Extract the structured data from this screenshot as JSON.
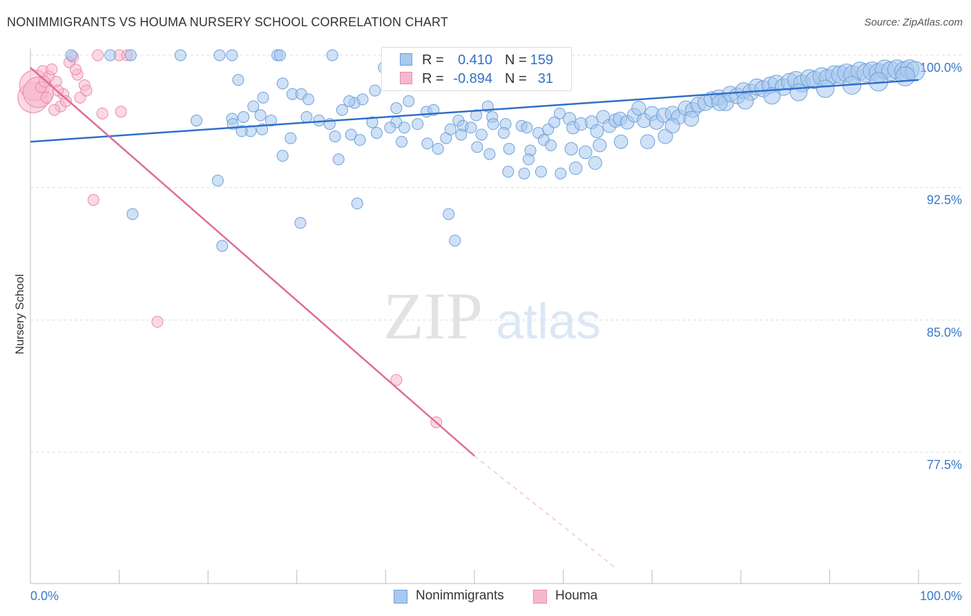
{
  "title": "NONIMMIGRANTS VS HOUMA NURSERY SCHOOL CORRELATION CHART",
  "source": "Source: ZipAtlas.com",
  "watermark": {
    "part1": "ZIP",
    "part2": "atlas"
  },
  "colors": {
    "blue_fill": "#a8c8ee",
    "blue_stroke": "#6f9fd8",
    "blue_line": "#2e6fc9",
    "pink_fill": "#f7b8cc",
    "pink_stroke": "#e88aa9",
    "pink_line": "#e06a98",
    "axis_label": "#3a78c8",
    "grid": "#dddddd"
  },
  "legend": {
    "r_label": "R =",
    "n_label": "N =",
    "entries": [
      {
        "r": "0.410",
        "n": "159"
      },
      {
        "r": "-0.894",
        "n": "31"
      }
    ]
  },
  "bottom_legend": [
    "Nonimmigrants",
    "Houma"
  ],
  "chart_data": {
    "type": "scatter",
    "ylabel": "Nursery School",
    "xlim": [
      0,
      100
    ],
    "ylim": [
      71,
      101.5
    ],
    "x_tick_labels": {
      "left": "0.0%",
      "right": "100.0%"
    },
    "y_ticks": [
      {
        "value": 100.0,
        "label": "100.0%"
      },
      {
        "value": 92.5,
        "label": "92.5%"
      },
      {
        "value": 85.0,
        "label": "85.0%"
      },
      {
        "value": 77.5,
        "label": "77.5%"
      }
    ],
    "series": [
      {
        "name": "Nonimmigrants",
        "r": 0.41,
        "n": 159,
        "trend": {
          "x0": 0,
          "y0": 95.1,
          "x1": 100,
          "y1": 98.6
        },
        "points": [
          [
            4.6,
            100
          ],
          [
            9.0,
            100
          ],
          [
            11.3,
            100
          ],
          [
            16.9,
            100
          ],
          [
            21.3,
            100
          ],
          [
            22.7,
            100
          ],
          [
            27.8,
            100
          ],
          [
            28.1,
            100
          ],
          [
            34.0,
            100
          ],
          [
            39.8,
            99.3
          ],
          [
            23.4,
            98.6
          ],
          [
            28.4,
            98.4
          ],
          [
            29.5,
            97.8
          ],
          [
            30.5,
            97.8
          ],
          [
            31.3,
            97.5
          ],
          [
            26.2,
            97.6
          ],
          [
            25.1,
            97.1
          ],
          [
            22.7,
            96.4
          ],
          [
            24.0,
            96.5
          ],
          [
            25.9,
            96.6
          ],
          [
            26.1,
            95.8
          ],
          [
            24.8,
            95.7
          ],
          [
            32.5,
            96.3
          ],
          [
            33.7,
            96.1
          ],
          [
            35.1,
            96.9
          ],
          [
            36.5,
            97.3
          ],
          [
            35.9,
            97.4
          ],
          [
            37.4,
            97.5
          ],
          [
            38.8,
            98.0
          ],
          [
            42.6,
            97.4
          ],
          [
            41.2,
            97.0
          ],
          [
            41.2,
            96.2
          ],
          [
            40.5,
            95.9
          ],
          [
            42.1,
            95.9
          ],
          [
            41.8,
            95.1
          ],
          [
            44.6,
            96.8
          ],
          [
            45.4,
            96.9
          ],
          [
            43.6,
            96.1
          ],
          [
            46.8,
            95.3
          ],
          [
            48.2,
            96.3
          ],
          [
            48.7,
            96.0
          ],
          [
            50.8,
            95.5
          ],
          [
            50.2,
            96.6
          ],
          [
            52.0,
            96.5
          ],
          [
            52.1,
            96.1
          ],
          [
            51.5,
            97.1
          ],
          [
            53.5,
            96.1
          ],
          [
            53.3,
            95.6
          ],
          [
            55.3,
            96.0
          ],
          [
            55.9,
            95.9
          ],
          [
            56.3,
            94.6
          ],
          [
            57.2,
            95.6
          ],
          [
            57.8,
            95.2
          ],
          [
            58.3,
            95.8
          ],
          [
            59.0,
            96.2
          ],
          [
            59.6,
            96.7
          ],
          [
            60.7,
            96.4
          ],
          [
            61.1,
            95.9
          ],
          [
            62.0,
            96.1
          ],
          [
            63.2,
            96.2
          ],
          [
            63.8,
            95.7
          ],
          [
            64.5,
            96.5
          ],
          [
            65.2,
            96.0
          ],
          [
            65.9,
            96.3
          ],
          [
            66.4,
            96.4
          ],
          [
            67.2,
            96.2
          ],
          [
            68.0,
            96.6
          ],
          [
            68.5,
            97.0
          ],
          [
            69.1,
            96.3
          ],
          [
            70.0,
            96.7
          ],
          [
            70.5,
            96.2
          ],
          [
            71.3,
            96.6
          ],
          [
            72.3,
            96.7
          ],
          [
            73.0,
            96.5
          ],
          [
            73.8,
            97.0
          ],
          [
            74.6,
            96.9
          ],
          [
            75.2,
            97.2
          ],
          [
            76.0,
            97.3
          ],
          [
            76.7,
            97.5
          ],
          [
            77.5,
            97.6
          ],
          [
            78.3,
            97.3
          ],
          [
            78.8,
            97.8
          ],
          [
            79.6,
            97.7
          ],
          [
            80.3,
            98.0
          ],
          [
            81.1,
            97.9
          ],
          [
            81.8,
            98.2
          ],
          [
            82.5,
            98.1
          ],
          [
            83.3,
            98.3
          ],
          [
            84.0,
            98.4
          ],
          [
            84.8,
            98.2
          ],
          [
            85.5,
            98.5
          ],
          [
            86.2,
            98.6
          ],
          [
            86.9,
            98.4
          ],
          [
            87.7,
            98.7
          ],
          [
            88.3,
            98.6
          ],
          [
            89.1,
            98.8
          ],
          [
            89.8,
            98.7
          ],
          [
            90.5,
            98.9
          ],
          [
            91.2,
            98.9
          ],
          [
            91.9,
            99.0
          ],
          [
            92.6,
            98.9
          ],
          [
            93.4,
            99.1
          ],
          [
            94.1,
            99.0
          ],
          [
            94.8,
            99.1
          ],
          [
            95.5,
            99.0
          ],
          [
            96.2,
            99.2
          ],
          [
            96.9,
            99.1
          ],
          [
            97.6,
            99.2
          ],
          [
            98.4,
            99.1
          ],
          [
            99.0,
            99.2
          ],
          [
            99.6,
            99.1
          ],
          [
            23.8,
            95.7
          ],
          [
            29.3,
            95.3
          ],
          [
            34.3,
            95.4
          ],
          [
            36.1,
            95.5
          ],
          [
            39.0,
            95.6
          ],
          [
            31.1,
            96.5
          ],
          [
            38.5,
            96.2
          ],
          [
            27.1,
            96.3
          ],
          [
            21.1,
            92.9
          ],
          [
            18.7,
            96.3
          ],
          [
            11.5,
            91.0
          ],
          [
            36.8,
            91.6
          ],
          [
            47.1,
            91.0
          ],
          [
            30.4,
            90.5
          ],
          [
            34.7,
            94.1
          ],
          [
            47.8,
            89.5
          ],
          [
            21.6,
            89.2
          ],
          [
            22.8,
            96.1
          ],
          [
            28.4,
            94.3
          ],
          [
            37.1,
            95.2
          ],
          [
            48.5,
            95.5
          ],
          [
            50.3,
            94.8
          ],
          [
            53.8,
            93.4
          ],
          [
            55.6,
            93.3
          ],
          [
            57.5,
            93.4
          ],
          [
            59.7,
            93.3
          ],
          [
            61.4,
            93.6
          ],
          [
            63.6,
            93.9
          ],
          [
            66.5,
            95.1
          ],
          [
            69.5,
            95.1
          ],
          [
            71.5,
            95.4
          ],
          [
            72.3,
            96.0
          ],
          [
            74.4,
            96.4
          ],
          [
            77.6,
            97.3
          ],
          [
            80.5,
            97.4
          ],
          [
            83.5,
            97.7
          ],
          [
            86.5,
            97.9
          ],
          [
            89.5,
            98.1
          ],
          [
            92.5,
            98.3
          ],
          [
            95.5,
            98.5
          ],
          [
            98.5,
            98.8
          ],
          [
            44.7,
            95.0
          ],
          [
            45.9,
            94.7
          ],
          [
            47.3,
            95.8
          ],
          [
            49.6,
            95.9
          ],
          [
            51.7,
            94.4
          ],
          [
            53.9,
            94.7
          ],
          [
            56.1,
            94.1
          ],
          [
            58.6,
            94.9
          ],
          [
            60.9,
            94.7
          ],
          [
            62.5,
            94.5
          ],
          [
            64.1,
            94.9
          ]
        ]
      },
      {
        "name": "Houma",
        "r": -0.894,
        "n": 31,
        "trend": {
          "x0": 0,
          "y0": 99.3,
          "x1": 50,
          "y1": 77.3,
          "dash_x1": 66,
          "dash_y1": 70.9
        },
        "points": [
          [
            0.3,
            97.6
          ],
          [
            0.5,
            98.3
          ],
          [
            0.9,
            97.9
          ],
          [
            1.2,
            98.2
          ],
          [
            1.4,
            99.1
          ],
          [
            1.6,
            98.5
          ],
          [
            1.8,
            97.6
          ],
          [
            2.1,
            98.8
          ],
          [
            2.4,
            99.2
          ],
          [
            2.9,
            98.5
          ],
          [
            3.4,
            97.1
          ],
          [
            3.7,
            97.8
          ],
          [
            4.0,
            97.4
          ],
          [
            4.4,
            99.6
          ],
          [
            4.8,
            99.9
          ],
          [
            5.3,
            98.9
          ],
          [
            5.6,
            97.6
          ],
          [
            6.1,
            98.3
          ],
          [
            7.6,
            100
          ],
          [
            8.1,
            96.7
          ],
          [
            10.0,
            100
          ],
          [
            10.2,
            96.8
          ],
          [
            10.9,
            100
          ],
          [
            6.3,
            98.0
          ],
          [
            5.1,
            99.2
          ],
          [
            7.1,
            91.8
          ],
          [
            14.3,
            84.9
          ],
          [
            41.2,
            81.6
          ],
          [
            45.7,
            79.2
          ],
          [
            2.7,
            96.9
          ],
          [
            3.1,
            98.0
          ]
        ]
      }
    ]
  }
}
